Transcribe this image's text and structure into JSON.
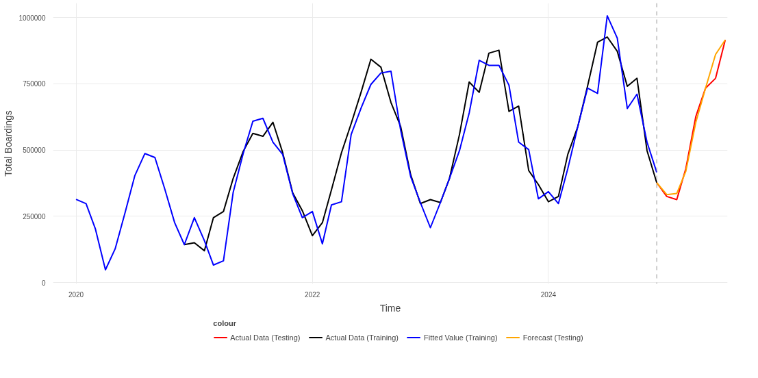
{
  "chart_data": {
    "type": "line",
    "xlabel": "Time",
    "ylabel": "Total Boardings",
    "legend_title": "colour",
    "xlim": [
      "2019-10-22",
      "2025-07-08"
    ],
    "xticks": [
      "2020",
      "2022",
      "2024"
    ],
    "ylim": [
      -5000,
      1055000
    ],
    "yticks": [
      0,
      250000,
      500000,
      750000,
      1000000
    ],
    "grid": true,
    "legend": "bottom",
    "line_style": "solid",
    "ref_lines": [
      {
        "axis": "x",
        "value": "2024-12",
        "color": "#999999",
        "line_style": "dashed"
      }
    ],
    "series": [
      {
        "name": "Actual Data (Testing)",
        "color": "#ff0000",
        "x": [
          "2024-12",
          "2025-01",
          "2025-02",
          "2025-03",
          "2025-04",
          "2025-05",
          "2025-06",
          "2025-07"
        ],
        "values": [
          377000,
          325000,
          313000,
          430000,
          627000,
          734000,
          771000,
          916000
        ]
      },
      {
        "name": "Actual Data (Training)",
        "color": "#000000",
        "x": [
          "2020-12",
          "2021-01",
          "2021-02",
          "2021-03",
          "2021-04",
          "2021-05",
          "2021-06",
          "2021-07",
          "2021-08",
          "2021-09",
          "2021-10",
          "2021-11",
          "2021-12",
          "2022-01",
          "2022-02",
          "2022-03",
          "2022-04",
          "2022-05",
          "2022-06",
          "2022-07",
          "2022-08",
          "2022-09",
          "2022-10",
          "2022-11",
          "2022-12",
          "2023-01",
          "2023-02",
          "2023-03",
          "2023-04",
          "2023-05",
          "2023-06",
          "2023-07",
          "2023-08",
          "2023-09",
          "2023-10",
          "2023-11",
          "2023-12",
          "2024-01",
          "2024-02",
          "2024-03",
          "2024-04",
          "2024-05",
          "2024-06",
          "2024-07",
          "2024-08",
          "2024-09",
          "2024-10",
          "2024-11",
          "2024-12"
        ],
        "values": [
          143000,
          150000,
          120000,
          245000,
          268000,
          393000,
          495000,
          563000,
          552000,
          605000,
          491000,
          339000,
          271000,
          177000,
          226000,
          350000,
          490000,
          600000,
          720000,
          843000,
          813000,
          680000,
          589000,
          407000,
          298000,
          313000,
          302000,
          393000,
          559000,
          757000,
          718000,
          866000,
          877000,
          646000,
          666000,
          423000,
          370000,
          305000,
          325000,
          484000,
          589000,
          741000,
          907000,
          927000,
          873000,
          741000,
          771000,
          498000,
          377000
        ]
      },
      {
        "name": "Fitted Value (Training)",
        "color": "#0000ff",
        "x": [
          "2020-01",
          "2020-02",
          "2020-03",
          "2020-04",
          "2020-05",
          "2020-06",
          "2020-07",
          "2020-08",
          "2020-09",
          "2020-10",
          "2020-11",
          "2020-12",
          "2021-01",
          "2021-02",
          "2021-03",
          "2021-04",
          "2021-05",
          "2021-06",
          "2021-07",
          "2021-08",
          "2021-09",
          "2021-10",
          "2021-11",
          "2021-12",
          "2022-01",
          "2022-02",
          "2022-03",
          "2022-04",
          "2022-05",
          "2022-06",
          "2022-07",
          "2022-08",
          "2022-09",
          "2022-10",
          "2022-11",
          "2022-12",
          "2023-01",
          "2023-02",
          "2023-03",
          "2023-04",
          "2023-05",
          "2023-06",
          "2023-07",
          "2023-08",
          "2023-09",
          "2023-10",
          "2023-11",
          "2023-12",
          "2024-01",
          "2024-02",
          "2024-03",
          "2024-04",
          "2024-05",
          "2024-06",
          "2024-07",
          "2024-08",
          "2024-09",
          "2024-10",
          "2024-11",
          "2024-12"
        ],
        "values": [
          314000,
          298000,
          202000,
          48000,
          127000,
          265000,
          404000,
          487000,
          472000,
          355000,
          226000,
          143000,
          245000,
          158000,
          66000,
          82000,
          340000,
          487000,
          609000,
          620000,
          530000,
          484000,
          336000,
          245000,
          268000,
          146000,
          293000,
          305000,
          559000,
          660000,
          748000,
          791000,
          798000,
          575000,
          400000,
          302000,
          207000,
          302000,
          393000,
          498000,
          640000,
          839000,
          820000,
          820000,
          745000,
          530000,
          502000,
          316000,
          343000,
          298000,
          430000,
          589000,
          734000,
          714000,
          1007000,
          923000,
          657000,
          711000,
          530000,
          416000
        ]
      },
      {
        "name": "Forecast (Testing)",
        "color": "#ffa500",
        "x": [
          "2024-12",
          "2025-01",
          "2025-02",
          "2025-03",
          "2025-04",
          "2025-05",
          "2025-06",
          "2025-07"
        ],
        "values": [
          377000,
          332000,
          336000,
          420000,
          605000,
          734000,
          861000,
          916000
        ]
      }
    ]
  }
}
